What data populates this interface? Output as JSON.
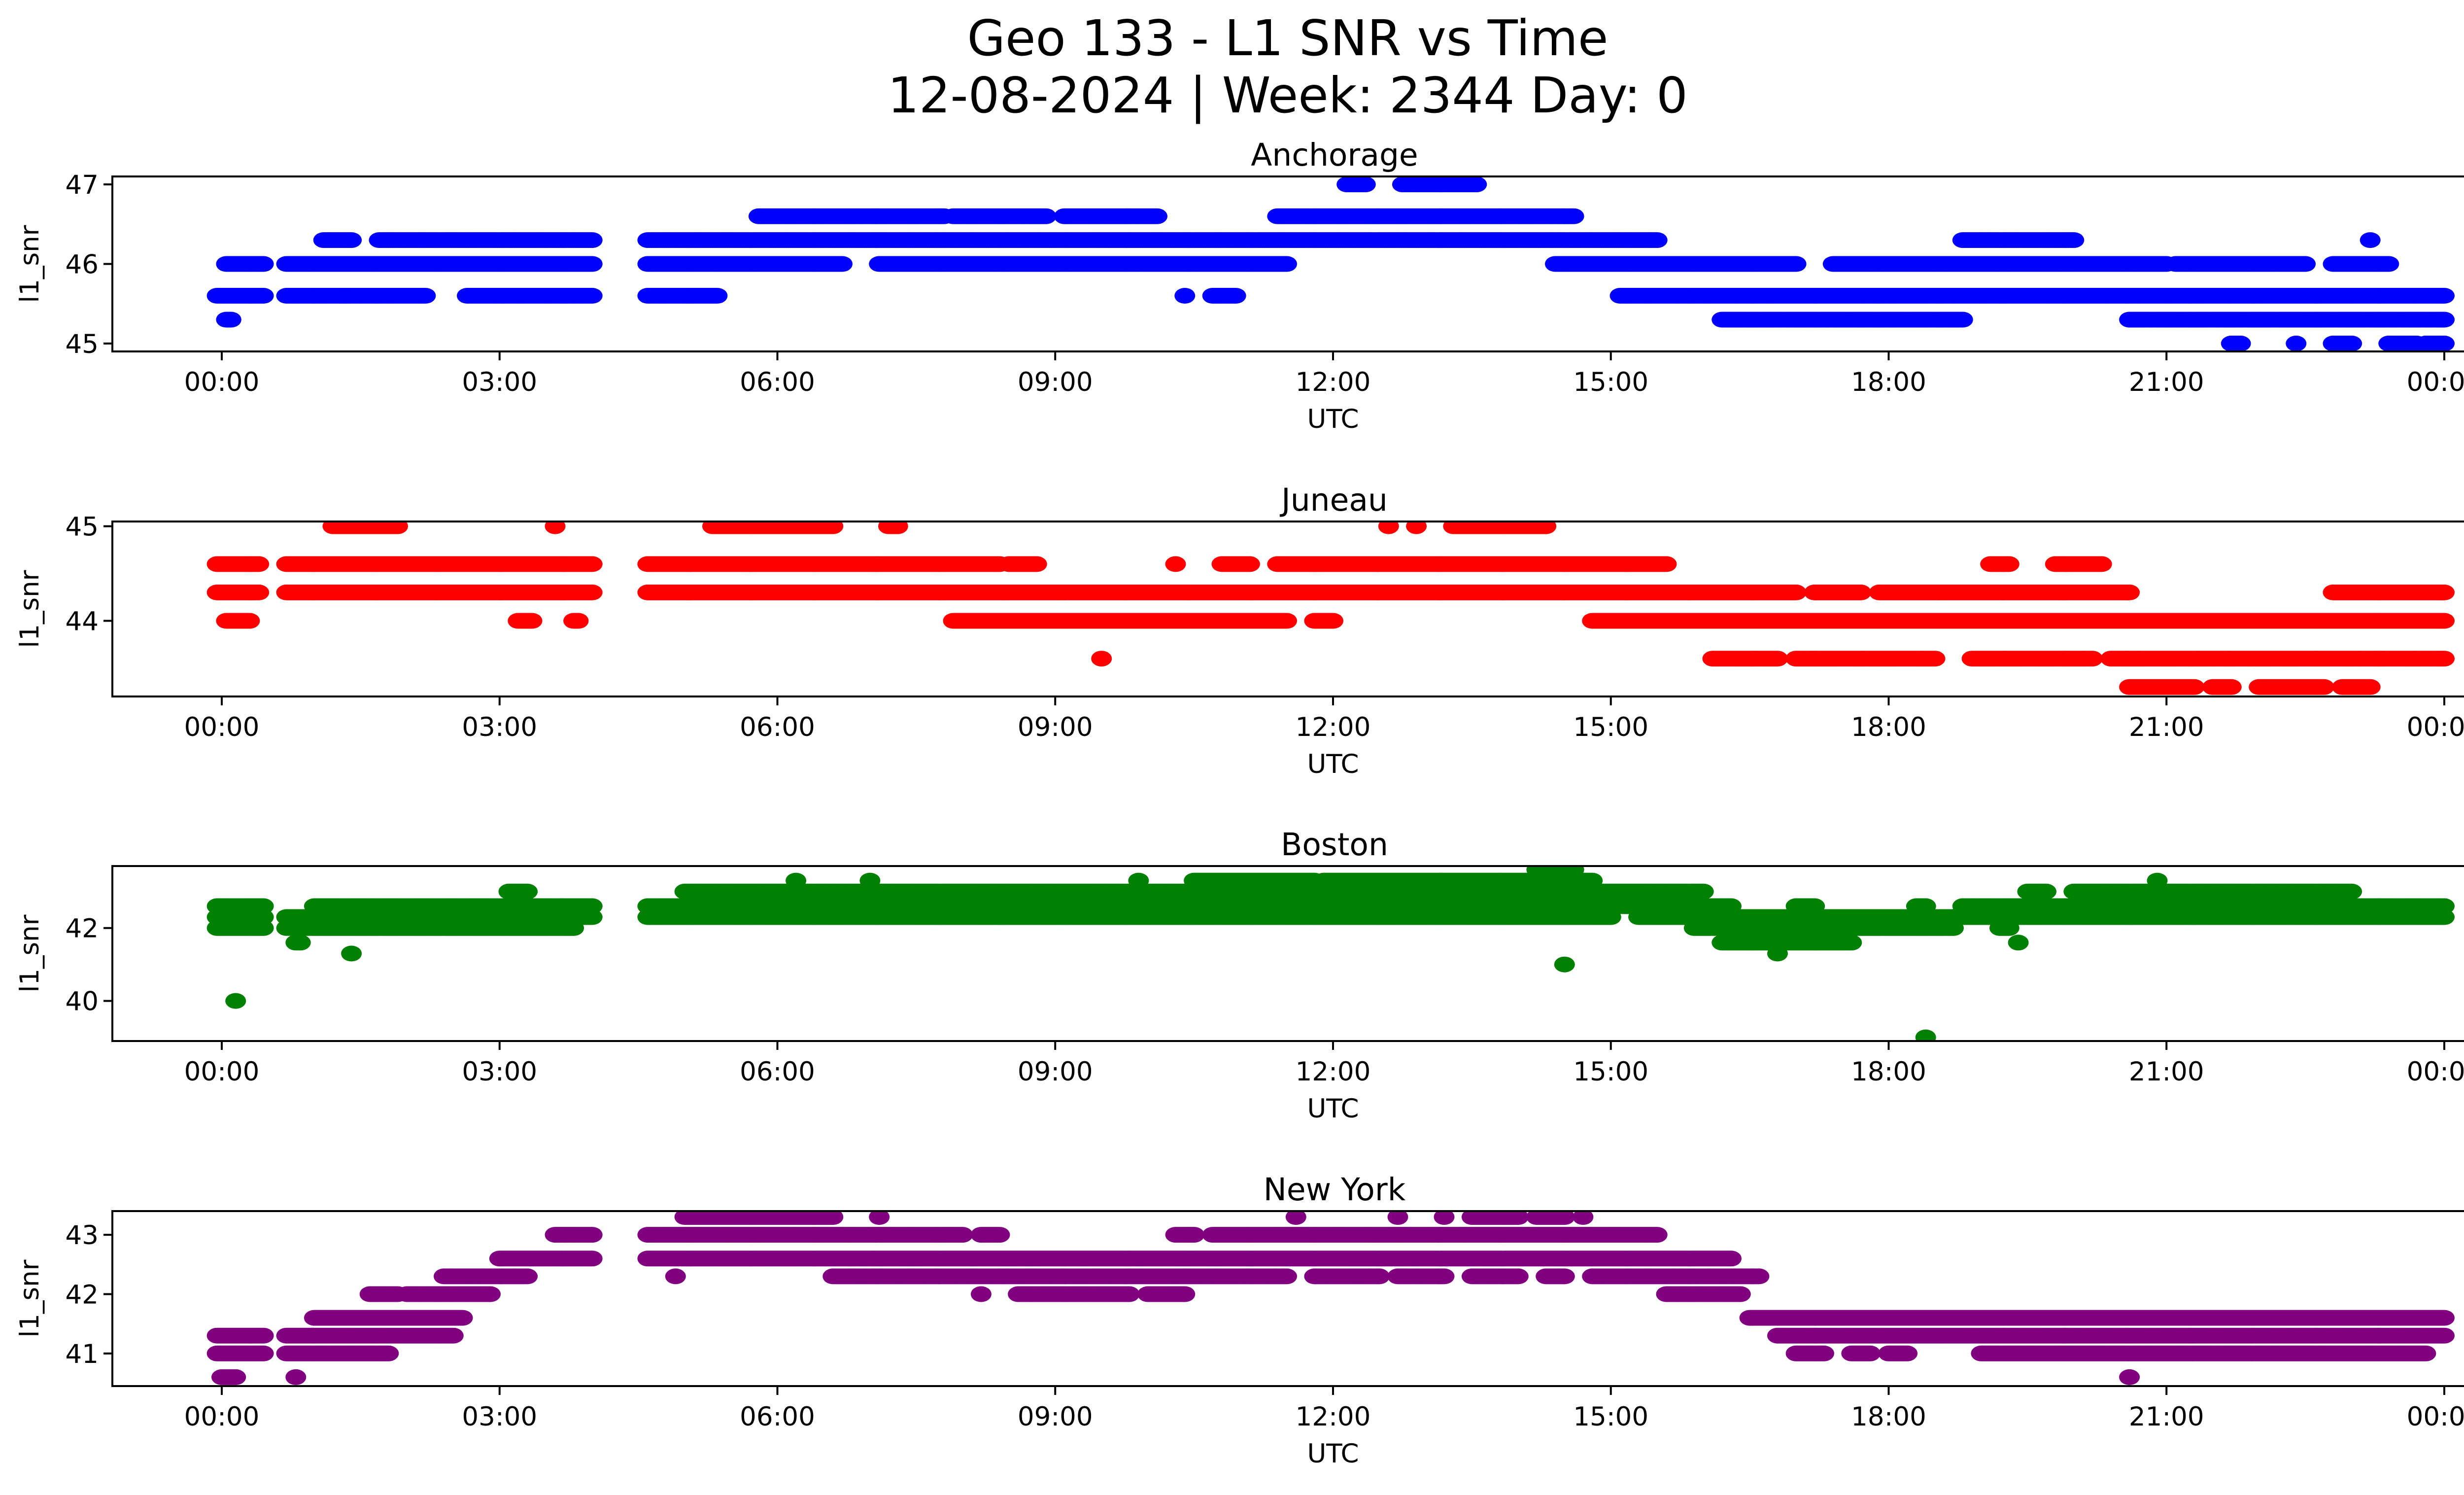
{
  "chart_data": {
    "type": "scatter",
    "title": "Geo 133 - L1 SNR vs Time",
    "subtitle": "12-08-2024 | Week: 2344 Day: 0",
    "xlabel": "UTC",
    "ylabel": "l1_snr",
    "x_unit": "hours UTC",
    "xlim": [
      -0.6,
      25.7
    ],
    "xticks": [
      0,
      3,
      6,
      9,
      12,
      15,
      18,
      21,
      24
    ],
    "xtick_labels": [
      "00:00",
      "03:00",
      "06:00",
      "09:00",
      "12:00",
      "15:00",
      "18:00",
      "21:00",
      "00:00"
    ],
    "grid": false,
    "legend": "none",
    "panels": [
      {
        "title": "Anchorage",
        "color": "#0000ff",
        "ylim": [
          44.9,
          47.1
        ],
        "yticks": [
          45,
          46,
          47
        ],
        "ytick_labels": [
          "45",
          "46",
          "47"
        ],
        "runs": [
          {
            "y": 45.3,
            "x": [
              [
                0.05,
                0.1
              ],
              [
                16.2,
                18.8
              ],
              [
                20.6,
                24.0
              ]
            ]
          },
          {
            "y": 45.6,
            "x": [
              [
                -0.05,
                0.45
              ],
              [
                0.7,
                1.35
              ],
              [
                1.3,
                2.2
              ],
              [
                2.65,
                4.0
              ],
              [
                4.6,
                5.35
              ],
              [
                10.4,
                10.4
              ],
              [
                10.7,
                10.95
              ],
              [
                15.1,
                24.0
              ]
            ]
          },
          {
            "y": 46.0,
            "x": [
              [
                0.05,
                0.45
              ],
              [
                0.7,
                4.0
              ],
              [
                4.6,
                6.7
              ],
              [
                7.1,
                11.5
              ],
              [
                14.4,
                17.0
              ],
              [
                17.4,
                21.0
              ],
              [
                21.1,
                22.5
              ],
              [
                22.8,
                23.4
              ]
            ]
          },
          {
            "y": 46.3,
            "x": [
              [
                1.1,
                1.4
              ],
              [
                1.7,
                4.0
              ],
              [
                4.6,
                15.5
              ],
              [
                18.8,
                20.0
              ],
              [
                23.2,
                23.2
              ]
            ]
          },
          {
            "y": 46.6,
            "x": [
              [
                5.8,
                7.8
              ],
              [
                7.9,
                8.9
              ],
              [
                9.1,
                10.1
              ],
              [
                11.4,
                14.6
              ]
            ]
          },
          {
            "y": 47.0,
            "x": [
              [
                12.15,
                12.35
              ],
              [
                12.75,
                13.55
              ]
            ]
          },
          {
            "y": 45.0,
            "x": [
              [
                21.7,
                21.8
              ],
              [
                22.4,
                22.4
              ],
              [
                22.8,
                23.0
              ],
              [
                23.4,
                23.7
              ],
              [
                23.8,
                24.0
              ]
            ]
          }
        ]
      },
      {
        "title": "Juneau",
        "color": "#ff0000",
        "ylim": [
          43.2,
          45.05
        ],
        "yticks": [
          44,
          45
        ],
        "ytick_labels": [
          "44",
          "45"
        ],
        "runs": [
          {
            "y": 45.0,
            "x": [
              [
                1.2,
                1.9
              ],
              [
                3.6,
                3.6
              ],
              [
                5.3,
                6.6
              ],
              [
                7.2,
                7.3
              ],
              [
                12.6,
                12.6
              ],
              [
                12.9,
                12.9
              ],
              [
                13.3,
                14.3
              ]
            ]
          },
          {
            "y": 44.6,
            "x": [
              [
                -0.05,
                0.4
              ],
              [
                0.7,
                4.0
              ],
              [
                4.6,
                8.4
              ],
              [
                8.5,
                8.8
              ],
              [
                10.3,
                10.3
              ],
              [
                10.8,
                11.1
              ],
              [
                11.4,
                15.6
              ],
              [
                19.1,
                19.3
              ],
              [
                19.8,
                20.3
              ]
            ]
          },
          {
            "y": 44.3,
            "x": [
              [
                -0.05,
                0.4
              ],
              [
                0.7,
                4.0
              ],
              [
                4.6,
                17.0
              ],
              [
                17.2,
                17.7
              ],
              [
                17.9,
                20.6
              ],
              [
                22.8,
                24.0
              ]
            ]
          },
          {
            "y": 44.0,
            "x": [
              [
                0.05,
                0.3
              ],
              [
                3.2,
                3.35
              ],
              [
                3.8,
                3.85
              ],
              [
                7.9,
                11.5
              ],
              [
                11.8,
                12.0
              ],
              [
                14.8,
                24.0
              ]
            ]
          },
          {
            "y": 43.6,
            "x": [
              [
                9.5,
                9.5
              ],
              [
                16.1,
                16.8
              ],
              [
                17.0,
                18.5
              ],
              [
                18.9,
                20.2
              ],
              [
                20.4,
                24.0
              ]
            ]
          },
          {
            "y": 43.3,
            "x": [
              [
                20.6,
                21.3
              ],
              [
                21.5,
                21.7
              ],
              [
                22.0,
                22.7
              ],
              [
                22.9,
                23.2
              ]
            ]
          }
        ]
      },
      {
        "title": "Boston",
        "color": "#008000",
        "ylim": [
          38.9,
          43.7
        ],
        "yticks": [
          40,
          42
        ],
        "ytick_labels": [
          "40",
          "42"
        ],
        "runs": [
          {
            "y": 43.6,
            "x": [
              [
                14.2,
                14.6
              ]
            ]
          },
          {
            "y": 43.3,
            "x": [
              [
                6.2,
                6.2
              ],
              [
                7.0,
                7.0
              ],
              [
                9.9,
                9.9
              ],
              [
                10.5,
                11.8
              ],
              [
                11.9,
                14.8
              ],
              [
                20.9,
                20.9
              ]
            ]
          },
          {
            "y": 43.0,
            "x": [
              [
                3.1,
                3.3
              ],
              [
                5.0,
                14.9
              ],
              [
                14.9,
                16.0
              ],
              [
                19.5,
                19.7
              ],
              [
                20.0,
                23.0
              ]
            ]
          },
          {
            "y": 42.6,
            "x": [
              [
                -0.05,
                0.45
              ],
              [
                1.0,
                4.0
              ],
              [
                4.6,
                14.4
              ],
              [
                14.5,
                16.3
              ],
              [
                17.0,
                17.2
              ],
              [
                18.3,
                18.4
              ],
              [
                18.8,
                24.0
              ]
            ]
          },
          {
            "y": 42.3,
            "x": [
              [
                -0.05,
                0.45
              ],
              [
                0.7,
                4.0
              ],
              [
                4.6,
                15.0
              ],
              [
                15.3,
                24.0
              ]
            ]
          },
          {
            "y": 42.0,
            "x": [
              [
                -0.05,
                0.45
              ],
              [
                0.7,
                3.8
              ],
              [
                15.9,
                18.7
              ],
              [
                19.2,
                19.3
              ]
            ]
          },
          {
            "y": 41.6,
            "x": [
              [
                0.8,
                0.85
              ],
              [
                16.2,
                17.6
              ],
              [
                19.4,
                19.4
              ]
            ]
          },
          {
            "y": 41.3,
            "x": [
              [
                1.4,
                1.4
              ],
              [
                16.8,
                16.8
              ]
            ]
          },
          {
            "y": 41.0,
            "x": [
              [
                14.5,
                14.5
              ]
            ]
          },
          {
            "y": 40.0,
            "x": [
              [
                0.15,
                0.15
              ]
            ]
          },
          {
            "y": 39.0,
            "x": [
              [
                18.4,
                18.4
              ]
            ]
          }
        ]
      },
      {
        "title": "New York",
        "color": "#800080",
        "ylim": [
          40.45,
          43.4
        ],
        "yticks": [
          41,
          42,
          43
        ],
        "ytick_labels": [
          "41",
          "42",
          "43"
        ],
        "runs": [
          {
            "y": 43.3,
            "x": [
              [
                5.0,
                6.6
              ],
              [
                7.1,
                7.1
              ],
              [
                11.6,
                11.6
              ],
              [
                12.7,
                12.7
              ],
              [
                13.2,
                13.2
              ],
              [
                13.5,
                14.0
              ],
              [
                14.2,
                14.5
              ],
              [
                14.7,
                14.7
              ]
            ]
          },
          {
            "y": 43.0,
            "x": [
              [
                3.6,
                4.0
              ],
              [
                4.6,
                8.0
              ],
              [
                8.2,
                8.4
              ],
              [
                10.3,
                10.5
              ],
              [
                10.7,
                15.5
              ]
            ]
          },
          {
            "y": 42.6,
            "x": [
              [
                3.0,
                4.0
              ],
              [
                4.6,
                16.3
              ]
            ]
          },
          {
            "y": 42.3,
            "x": [
              [
                2.4,
                3.3
              ],
              [
                4.9,
                4.9
              ],
              [
                6.6,
                11.5
              ],
              [
                11.8,
                12.5
              ],
              [
                12.7,
                13.2
              ],
              [
                13.5,
                14.0
              ],
              [
                14.3,
                14.5
              ],
              [
                14.8,
                16.6
              ]
            ]
          },
          {
            "y": 42.0,
            "x": [
              [
                1.6,
                1.9
              ],
              [
                2.0,
                2.9
              ],
              [
                8.2,
                8.2
              ],
              [
                8.6,
                9.8
              ],
              [
                10.0,
                10.4
              ],
              [
                15.6,
                16.4
              ]
            ]
          },
          {
            "y": 41.6,
            "x": [
              [
                1.0,
                2.6
              ],
              [
                16.5,
                24.0
              ]
            ]
          },
          {
            "y": 41.3,
            "x": [
              [
                -0.05,
                0.45
              ],
              [
                0.7,
                2.5
              ],
              [
                16.8,
                24.0
              ]
            ]
          },
          {
            "y": 41.0,
            "x": [
              [
                -0.05,
                0.45
              ],
              [
                0.7,
                1.8
              ],
              [
                17.0,
                17.3
              ],
              [
                17.6,
                17.8
              ],
              [
                18.0,
                18.2
              ],
              [
                19.0,
                23.8
              ]
            ]
          },
          {
            "y": 40.6,
            "x": [
              [
                0.0,
                0.15
              ],
              [
                0.8,
                0.8
              ],
              [
                20.6,
                20.6
              ]
            ]
          }
        ]
      }
    ]
  }
}
